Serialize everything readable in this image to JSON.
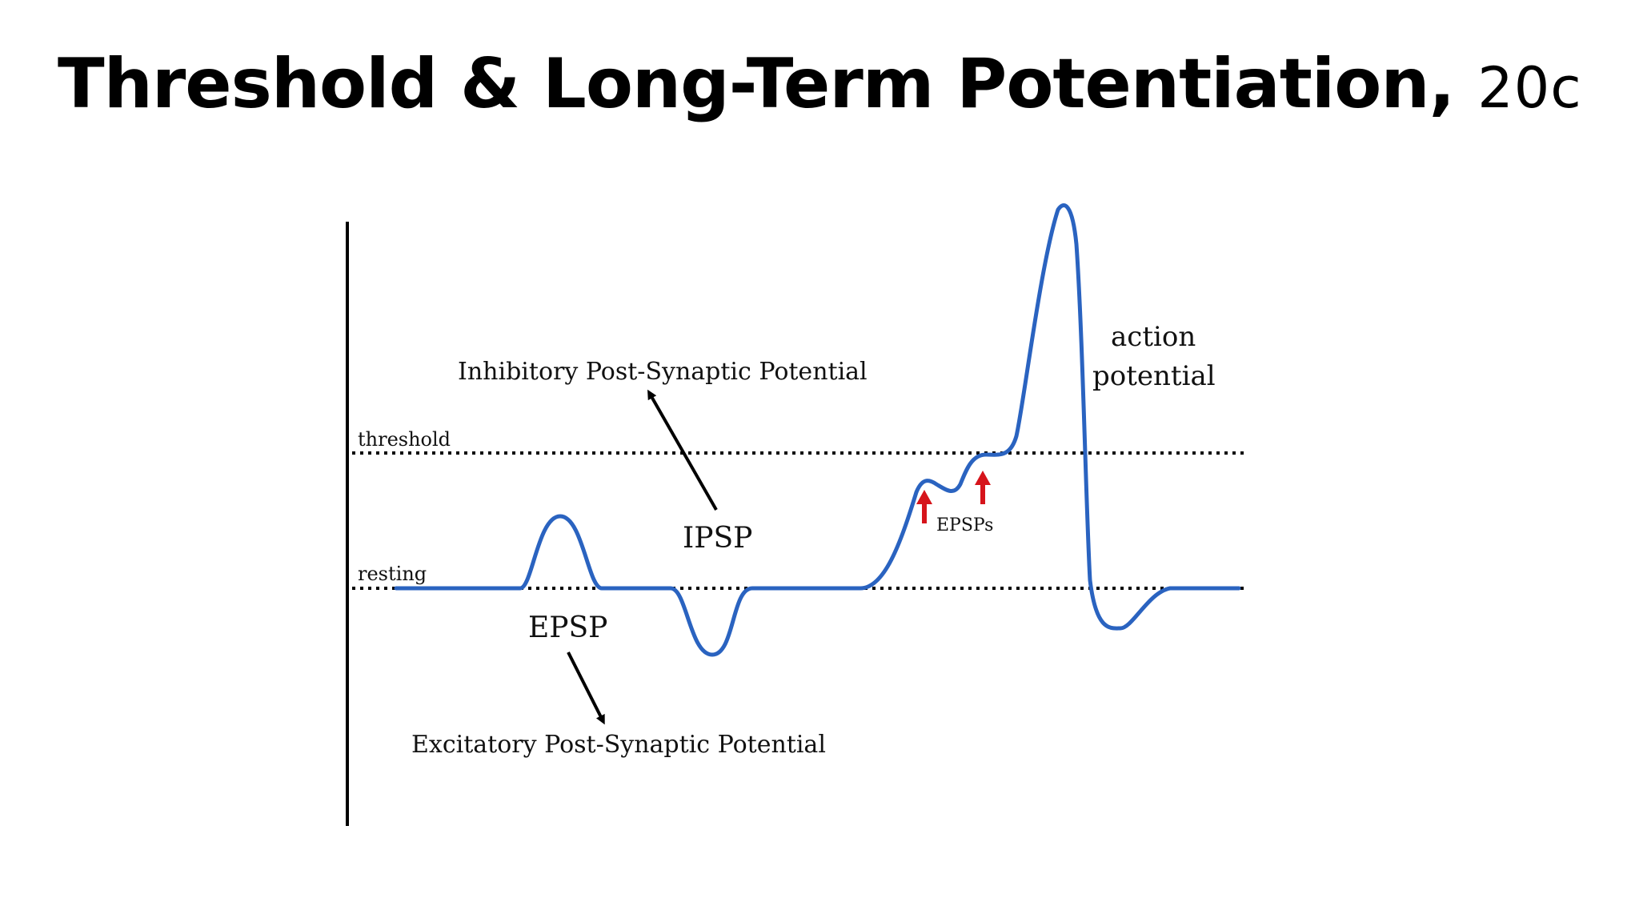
{
  "slide": {
    "title_main": "Threshold & Long-Term Potentiation, ",
    "title_suffix": "20c"
  },
  "diagram": {
    "labels": {
      "threshold": "threshold",
      "resting": "resting",
      "epsp": "EPSP",
      "epsp_full": "Excitatory Post-Synaptic Potential",
      "ipsp": "IPSP",
      "ipsp_full": "Inhibitory Post-Synaptic Potential",
      "epsps": "EPSPs",
      "action_line1": "action",
      "action_line2": "potential"
    },
    "colors": {
      "trace": "#2a63c0",
      "arrow_red": "#d6141b",
      "axis": "#000000",
      "dotted_line": "#000000"
    }
  }
}
